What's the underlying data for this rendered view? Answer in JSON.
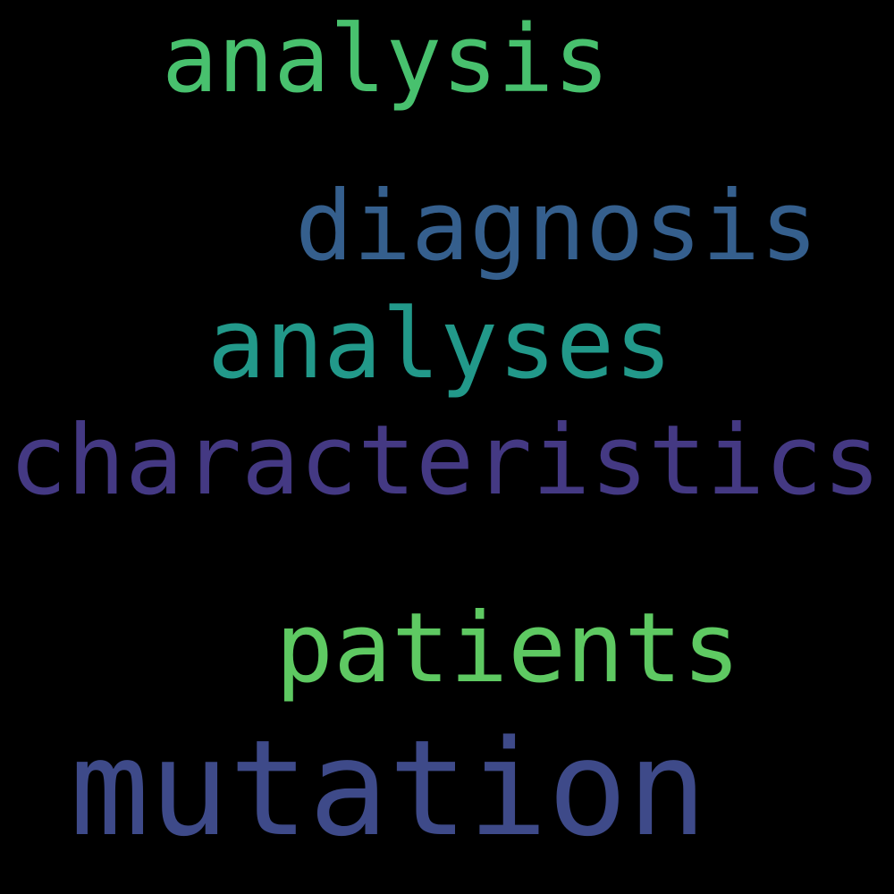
{
  "background_color": "#000000",
  "words": [
    {
      "text": "analysis",
      "color": "#48c16e"
    },
    {
      "text": "diagnosis",
      "color": "#355f8d"
    },
    {
      "text": "analyses",
      "color": "#22998a"
    },
    {
      "text": "characteristics",
      "color": "#443983"
    },
    {
      "text": "patients",
      "color": "#5ec962"
    },
    {
      "text": "mutation",
      "color": "#3e4a89"
    }
  ]
}
